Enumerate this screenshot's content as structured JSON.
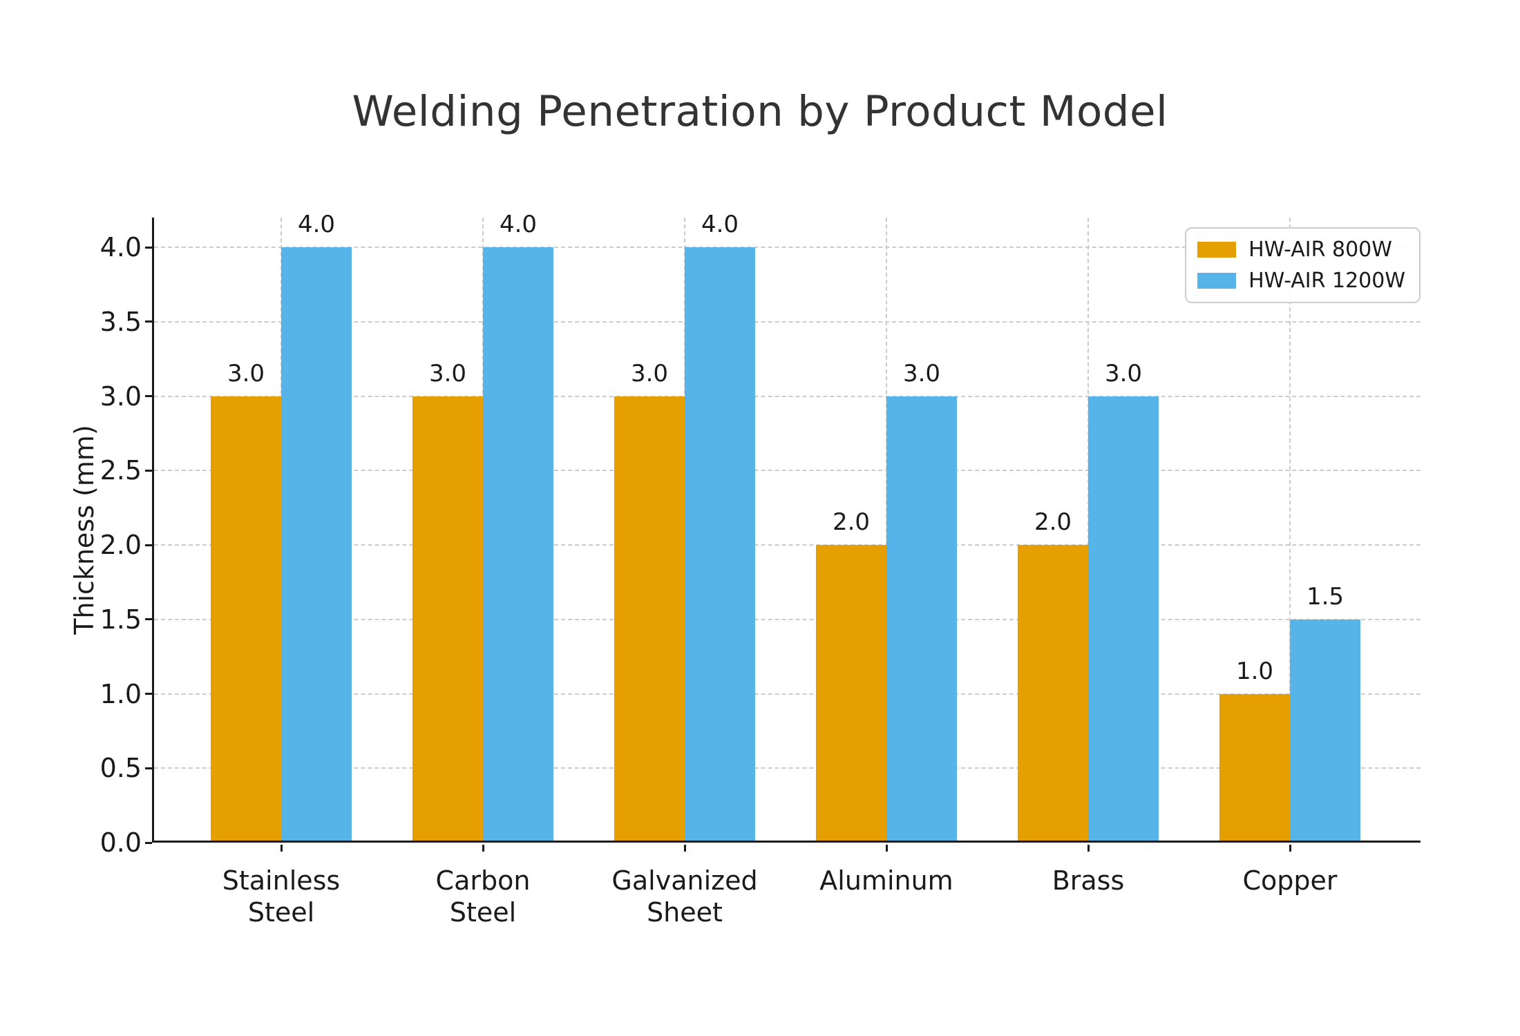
{
  "chart_data": {
    "type": "bar",
    "title": "Welding Penetration by Product Model",
    "ylabel": "Thickness (mm)",
    "xlabel": "",
    "categories": [
      "Stainless\nSteel",
      "Carbon\nSteel",
      "Galvanized\nSheet",
      "Aluminum",
      "Brass",
      "Copper"
    ],
    "series": [
      {
        "name": "HW-AIR 800W",
        "color": "#E69F00",
        "values": [
          3.0,
          3.0,
          3.0,
          2.0,
          2.0,
          1.0
        ]
      },
      {
        "name": "HW-AIR 1200W",
        "color": "#56B4E9",
        "values": [
          4.0,
          4.0,
          4.0,
          3.0,
          3.0,
          1.5
        ]
      }
    ],
    "yticks": [
      0.0,
      0.5,
      1.0,
      1.5,
      2.0,
      2.5,
      3.0,
      3.5,
      4.0
    ],
    "ylim": [
      0,
      4.2
    ],
    "grid": "dashed-both-axes",
    "legend_position": "upper-right",
    "value_labels_decimals": 1,
    "colors": {
      "grid": "#cccccc",
      "axis": "#1a1a1a",
      "title_text": "#333333"
    }
  }
}
